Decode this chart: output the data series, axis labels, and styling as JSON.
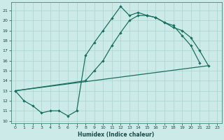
{
  "xlabel": "Humidex (Indice chaleur)",
  "bg_color": "#cceae8",
  "grid_color": "#aad4d0",
  "line_color": "#1a7060",
  "xlim": [
    -0.5,
    23.5
  ],
  "ylim": [
    9.8,
    21.8
  ],
  "xticks": [
    0,
    1,
    2,
    3,
    4,
    5,
    6,
    7,
    8,
    9,
    10,
    11,
    12,
    13,
    14,
    15,
    16,
    17,
    18,
    19,
    20,
    21,
    22,
    23
  ],
  "yticks": [
    10,
    11,
    12,
    13,
    14,
    15,
    16,
    17,
    18,
    19,
    20,
    21
  ],
  "curve1_x": [
    0,
    1,
    2,
    3,
    4,
    5,
    6,
    7,
    8,
    9,
    10,
    11,
    12,
    13,
    14,
    15,
    16,
    17,
    18,
    19,
    20,
    21,
    22
  ],
  "curve1_y": [
    13,
    12,
    11.5,
    10.8,
    11.0,
    11.0,
    10.5,
    11.0,
    16.5,
    17.8,
    19.0,
    20.2,
    21.4,
    20.5,
    20.8,
    20.5,
    20.3,
    19.8,
    19.5,
    18.5,
    17.5,
    15.8,
    null
  ],
  "curve2_x": [
    0,
    8,
    9,
    10,
    11,
    12,
    13,
    14,
    15,
    16,
    17,
    18,
    19,
    20,
    21,
    22
  ],
  "curve2_y": [
    13,
    14.0,
    15.0,
    16.0,
    17.5,
    18.8,
    20.0,
    20.5,
    20.5,
    20.3,
    19.8,
    19.3,
    19.0,
    18.3,
    17.0,
    15.5
  ],
  "curve3_x": [
    0,
    22
  ],
  "curve3_y": [
    13,
    15.5
  ]
}
